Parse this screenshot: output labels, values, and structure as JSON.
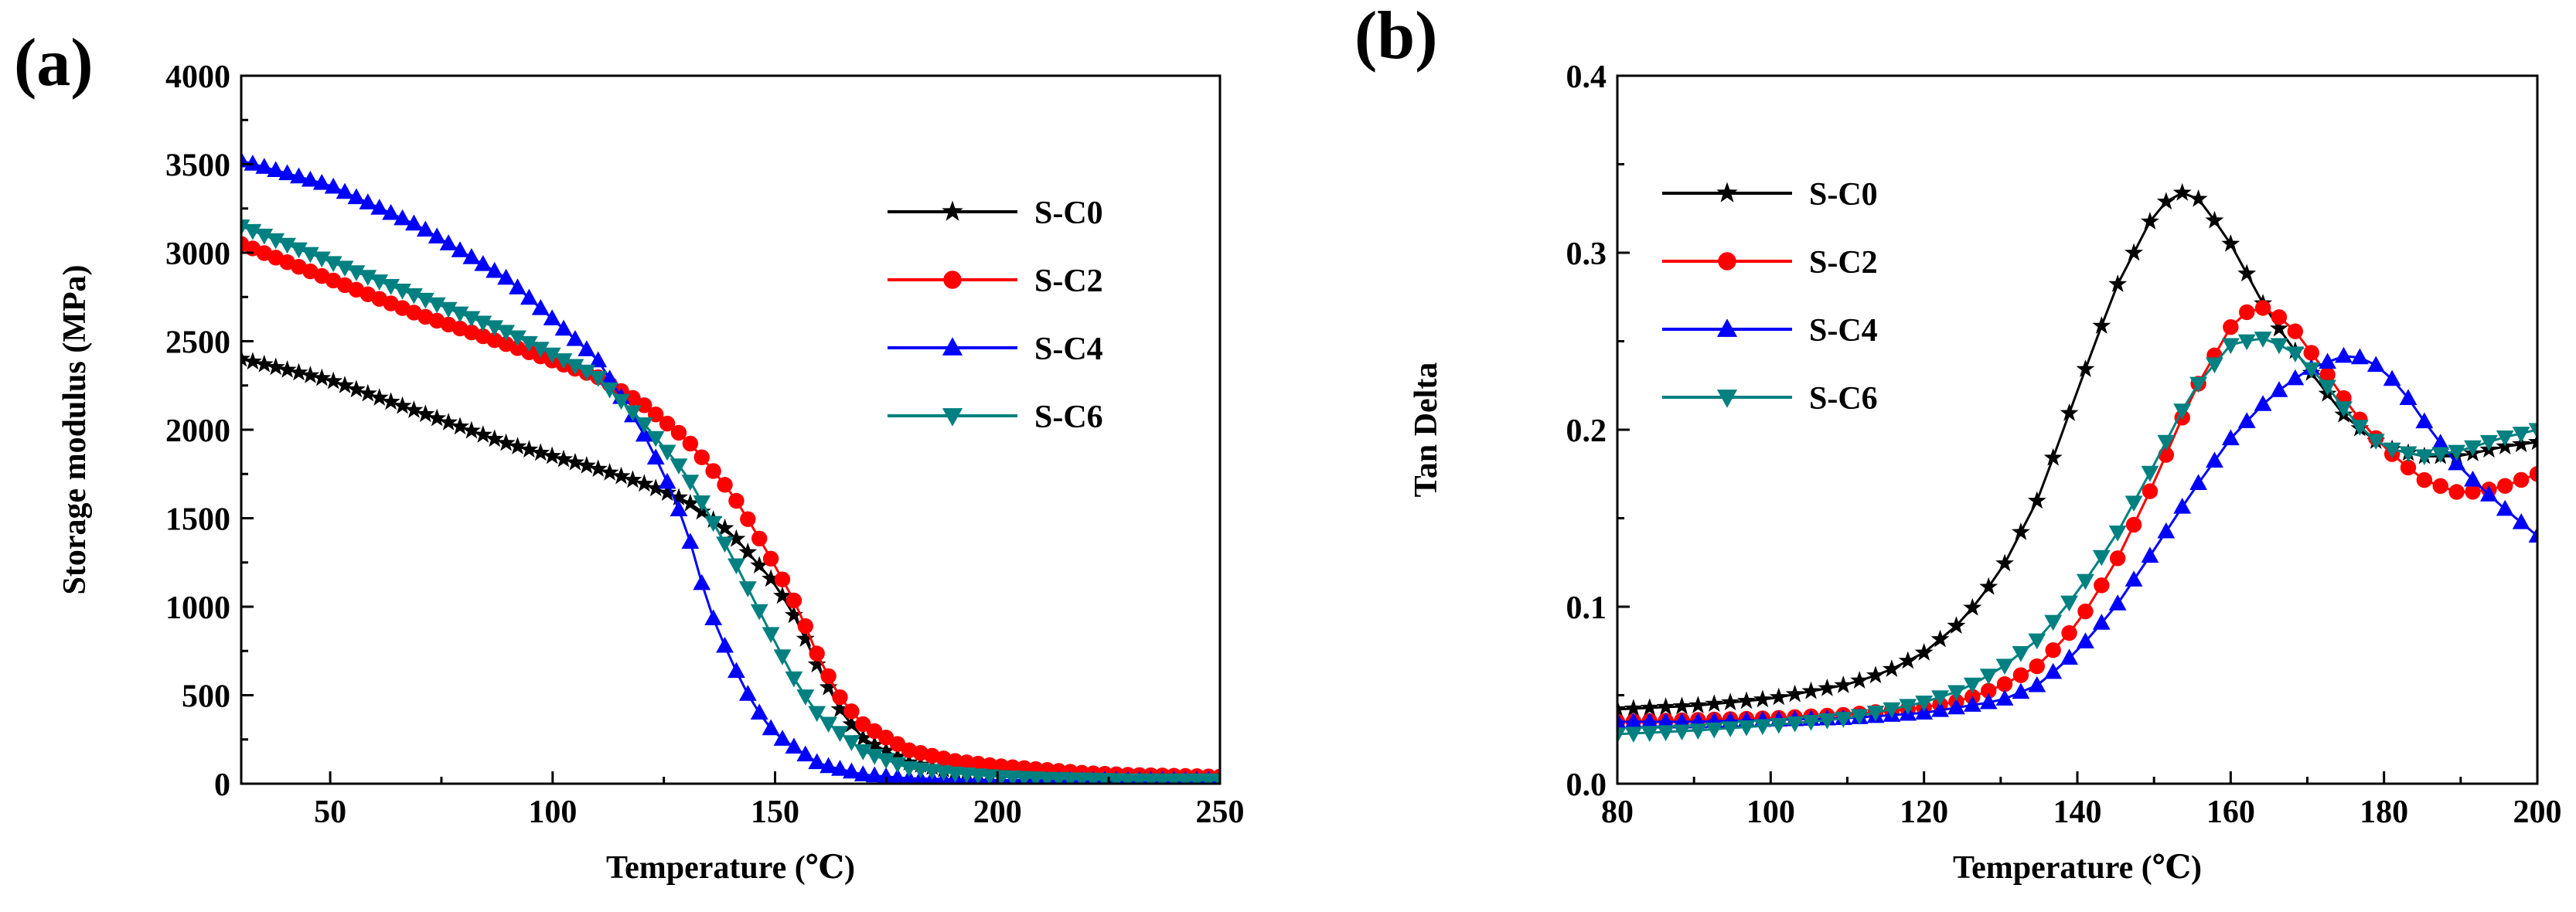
{
  "chart_data": [
    {
      "panel": "(a)",
      "type": "line",
      "title": "",
      "xlabel": "Temperature (℃)",
      "ylabel": "Storage modulus (MPa)",
      "xlim": [
        30,
        250
      ],
      "ylim": [
        0,
        4000
      ],
      "xticks": [
        50,
        100,
        150,
        200,
        250
      ],
      "yticks": [
        0,
        500,
        1000,
        1500,
        2000,
        2500,
        3000,
        3500,
        4000
      ],
      "xtick_labels": [
        "50",
        "100",
        "150",
        "200",
        "250"
      ],
      "ytick_labels": [
        "0",
        "500",
        "1000",
        "1500",
        "2000",
        "2500",
        "3000",
        "3500",
        "4000"
      ],
      "legend_position": "right-middle",
      "series": [
        {
          "name": "S-C0",
          "color": "#000000",
          "marker": "star",
          "x": [
            30,
            50,
            70,
            90,
            110,
            120,
            130,
            140,
            150,
            155,
            160,
            165,
            170,
            180,
            190,
            200,
            210,
            220,
            230,
            240,
            250
          ],
          "y": [
            2400,
            2280,
            2100,
            1920,
            1780,
            1700,
            1600,
            1420,
            1130,
            920,
            640,
            400,
            250,
            120,
            70,
            50,
            40,
            35,
            30,
            30,
            30
          ]
        },
        {
          "name": "S-C2",
          "color": "#ff0000",
          "marker": "circle",
          "x": [
            30,
            50,
            70,
            90,
            110,
            120,
            130,
            140,
            145,
            150,
            155,
            160,
            165,
            170,
            180,
            190,
            200,
            210,
            220,
            230,
            240,
            250
          ],
          "y": [
            3050,
            2850,
            2650,
            2480,
            2300,
            2150,
            1950,
            1650,
            1450,
            1230,
            1000,
            700,
            470,
            330,
            190,
            130,
            100,
            80,
            60,
            50,
            45,
            40
          ]
        },
        {
          "name": "S-C4",
          "color": "#0000ff",
          "marker": "triangle-up",
          "x": [
            30,
            50,
            70,
            90,
            110,
            120,
            125,
            130,
            135,
            140,
            145,
            150,
            160,
            170,
            180,
            190,
            200,
            210,
            220,
            230,
            240,
            250
          ],
          "y": [
            3520,
            3380,
            3150,
            2850,
            2400,
            2000,
            1750,
            1450,
            1000,
            700,
            450,
            280,
            110,
            50,
            30,
            25,
            20,
            20,
            20,
            20,
            20,
            20
          ]
        },
        {
          "name": "S-C6",
          "color": "#008080",
          "marker": "triangle-down",
          "x": [
            30,
            50,
            70,
            90,
            110,
            120,
            130,
            140,
            145,
            150,
            155,
            160,
            170,
            180,
            190,
            200,
            210,
            220,
            230,
            240,
            250
          ],
          "y": [
            3150,
            2950,
            2750,
            2550,
            2300,
            2050,
            1750,
            1300,
            1050,
            800,
            560,
            380,
            180,
            90,
            60,
            40,
            30,
            25,
            20,
            20,
            20
          ]
        }
      ]
    },
    {
      "panel": "(b)",
      "type": "line",
      "title": "",
      "xlabel": "Temperature (℃)",
      "ylabel": "Tan Delta",
      "xlim": [
        80,
        200
      ],
      "ylim": [
        0,
        0.4
      ],
      "xticks": [
        80,
        100,
        120,
        140,
        160,
        180,
        200
      ],
      "yticks": [
        0,
        0.1,
        0.2,
        0.3,
        0.4
      ],
      "xtick_labels": [
        "80",
        "100",
        "120",
        "140",
        "160",
        "180",
        "200"
      ],
      "ytick_labels": [
        "0.0",
        "0.1",
        "0.2",
        "0.3",
        "0.4"
      ],
      "legend_position": "top-left",
      "series": [
        {
          "name": "S-C0",
          "color": "#000000",
          "marker": "star",
          "x": [
            80,
            90,
            100,
            110,
            115,
            120,
            125,
            130,
            135,
            140,
            145,
            150,
            153,
            156,
            160,
            165,
            170,
            175,
            180,
            185,
            190,
            195,
            200
          ],
          "y": [
            0.042,
            0.044,
            0.048,
            0.056,
            0.063,
            0.074,
            0.092,
            0.12,
            0.162,
            0.222,
            0.28,
            0.322,
            0.335,
            0.33,
            0.305,
            0.265,
            0.235,
            0.207,
            0.19,
            0.185,
            0.185,
            0.19,
            0.193
          ]
        },
        {
          "name": "S-C2",
          "color": "#ff0000",
          "marker": "circle",
          "x": [
            80,
            90,
            100,
            110,
            120,
            125,
            130,
            135,
            140,
            145,
            150,
            155,
            160,
            163,
            165,
            168,
            172,
            176,
            180,
            185,
            190,
            195,
            200
          ],
          "y": [
            0.035,
            0.036,
            0.037,
            0.039,
            0.043,
            0.047,
            0.055,
            0.067,
            0.09,
            0.125,
            0.17,
            0.22,
            0.258,
            0.27,
            0.268,
            0.258,
            0.235,
            0.21,
            0.19,
            0.172,
            0.164,
            0.167,
            0.175
          ]
        },
        {
          "name": "S-C4",
          "color": "#0000ff",
          "marker": "triangle-up",
          "x": [
            80,
            90,
            100,
            110,
            120,
            130,
            135,
            140,
            145,
            150,
            155,
            160,
            165,
            170,
            175,
            178,
            182,
            186,
            190,
            195,
            200
          ],
          "y": [
            0.035,
            0.035,
            0.036,
            0.037,
            0.04,
            0.047,
            0.056,
            0.075,
            0.1,
            0.132,
            0.165,
            0.195,
            0.218,
            0.234,
            0.242,
            0.24,
            0.225,
            0.2,
            0.178,
            0.158,
            0.14
          ]
        },
        {
          "name": "S-C6",
          "color": "#008080",
          "marker": "triangle-down",
          "x": [
            80,
            90,
            100,
            110,
            120,
            125,
            130,
            135,
            140,
            145,
            150,
            155,
            160,
            164,
            168,
            172,
            176,
            180,
            185,
            190,
            195,
            200
          ],
          "y": [
            0.028,
            0.03,
            0.033,
            0.037,
            0.046,
            0.053,
            0.065,
            0.082,
            0.108,
            0.14,
            0.18,
            0.222,
            0.248,
            0.252,
            0.245,
            0.228,
            0.205,
            0.19,
            0.185,
            0.188,
            0.195,
            0.2
          ]
        }
      ]
    }
  ]
}
